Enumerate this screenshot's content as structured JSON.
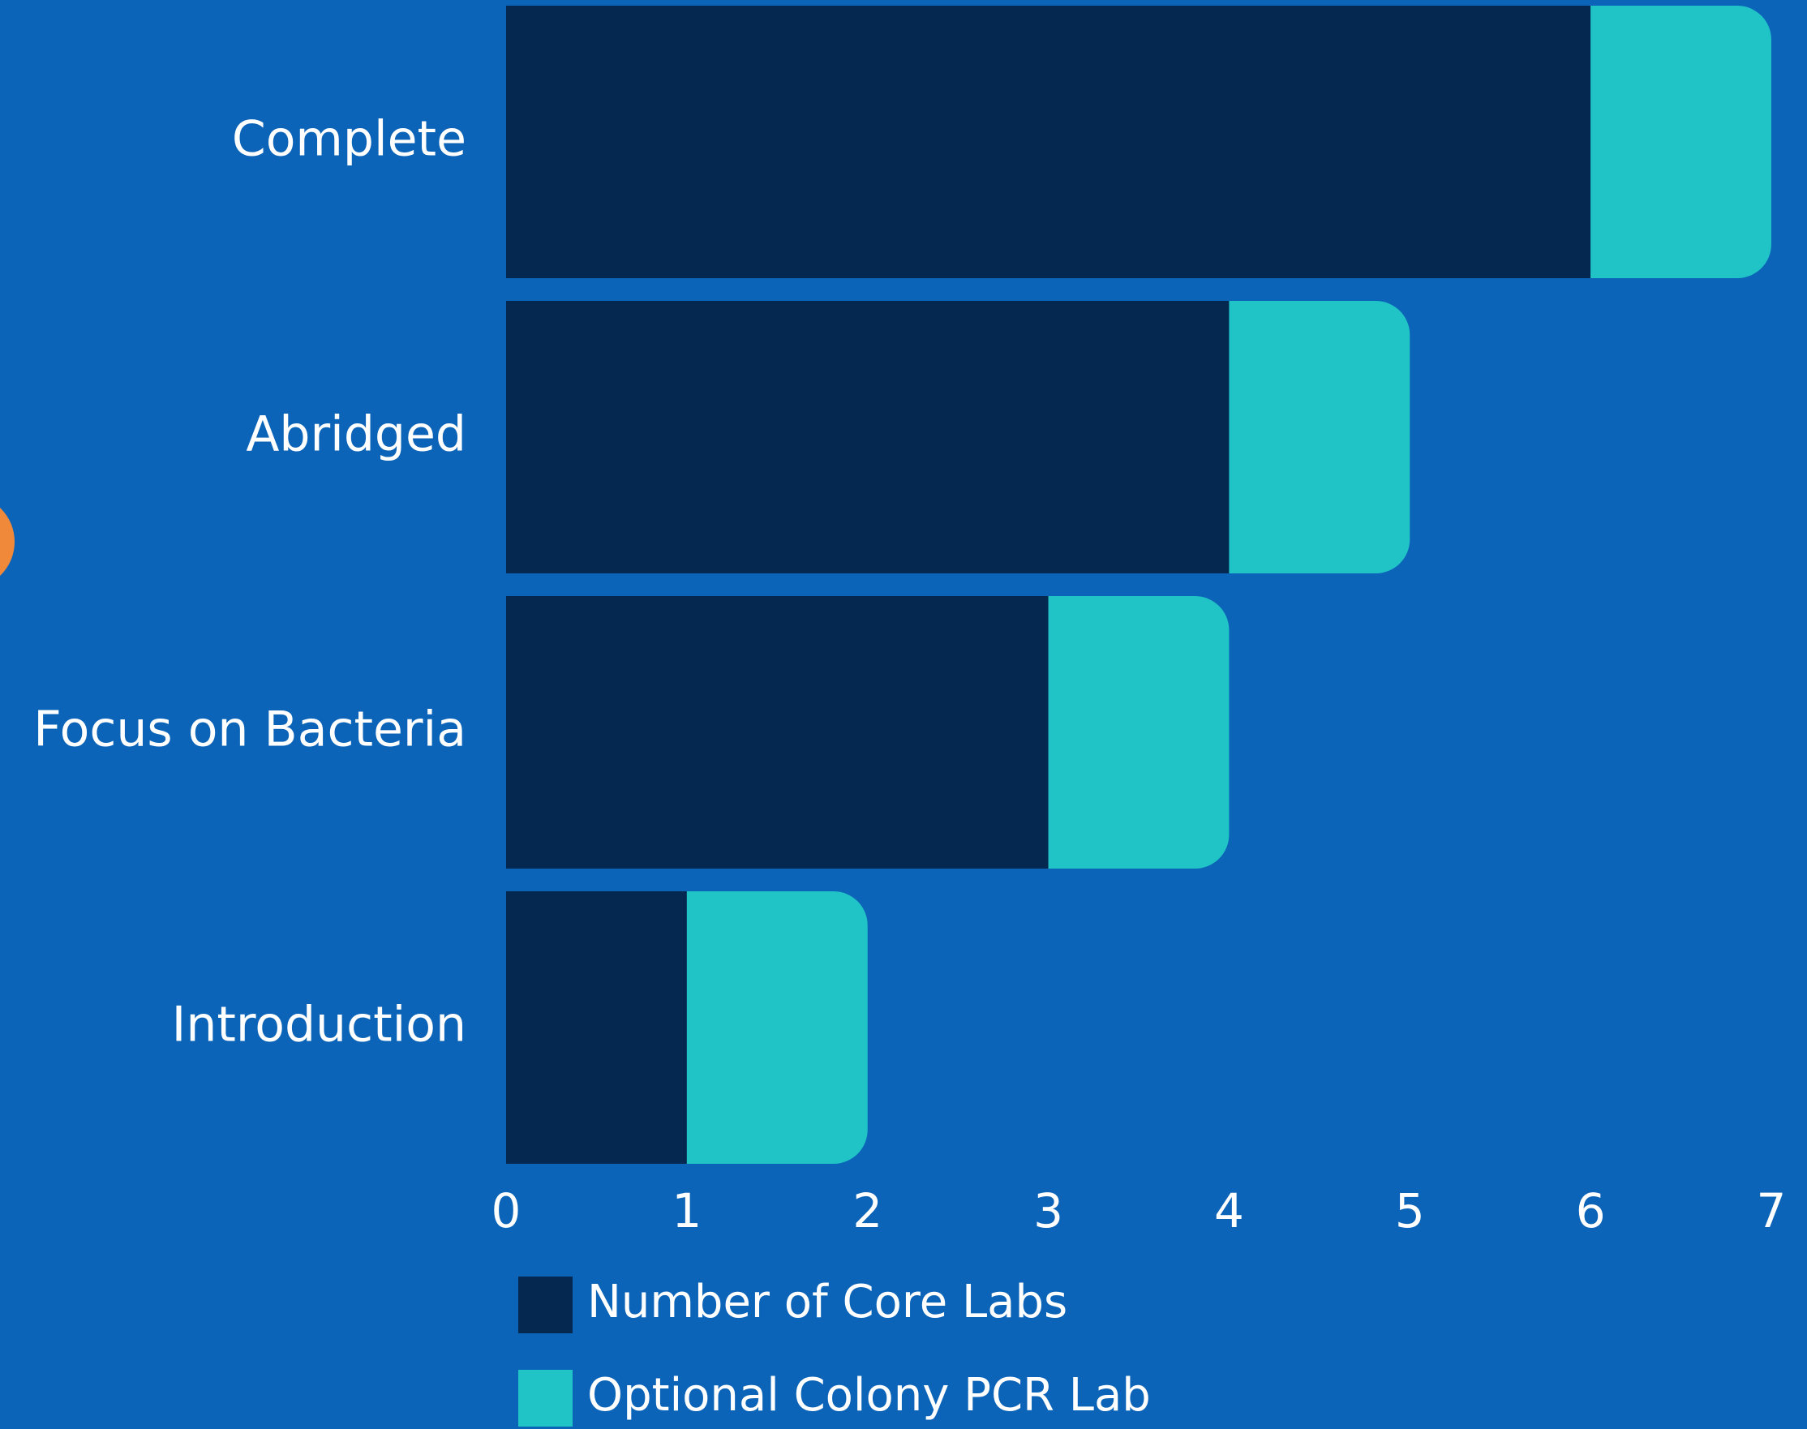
{
  "chart_data": {
    "type": "stacked-bar-horizontal",
    "categories": [
      "Complete",
      "Abridged",
      "Focus on Bacteria",
      "Introduction"
    ],
    "series": [
      {
        "name": "Number of Core Labs",
        "color": "#04284f",
        "values": [
          6,
          4,
          3,
          1
        ]
      },
      {
        "name": "Optional Colony PCR Lab",
        "color": "#20c3c6",
        "values": [
          1,
          1,
          1,
          1
        ]
      }
    ],
    "xlim": [
      0,
      7
    ],
    "xticks": [
      0,
      1,
      2,
      3,
      4,
      5,
      6,
      7
    ],
    "grid": false,
    "legend": "bottom-left"
  }
}
